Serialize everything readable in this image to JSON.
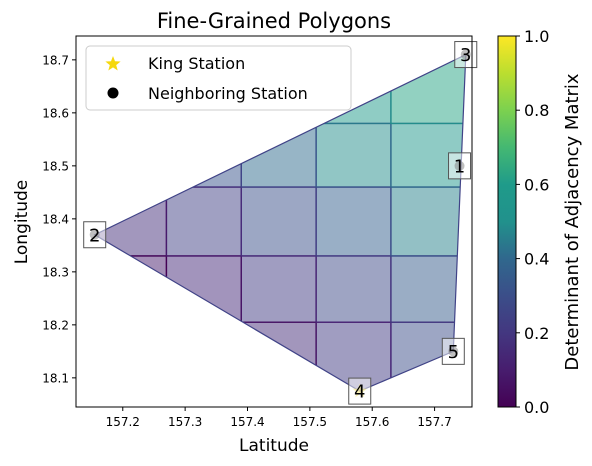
{
  "chart_data": {
    "type": "polygon-map",
    "title": "Fine-Grained Polygons",
    "xlabel": "Latitude",
    "ylabel": "Longitude",
    "xlim": [
      157.125,
      157.76
    ],
    "ylim": [
      18.045,
      18.745
    ],
    "xticks": [
      157.2,
      157.3,
      157.4,
      157.5,
      157.6,
      157.7
    ],
    "yticks": [
      18.1,
      18.2,
      18.3,
      18.4,
      18.5,
      18.6,
      18.7
    ],
    "xtick_labels": [
      "157.2",
      "157.3",
      "157.4",
      "157.5",
      "157.6",
      "157.7"
    ],
    "ytick_labels": [
      "18.1",
      "18.2",
      "18.3",
      "18.4",
      "18.5",
      "18.6",
      "18.7"
    ],
    "colorbar": {
      "label": "Determinant of Adjacency Matrix",
      "range": [
        0.0,
        1.0
      ],
      "ticks": [
        0.0,
        0.2,
        0.4,
        0.6,
        0.8,
        1.0
      ],
      "tick_labels": [
        "0.0",
        "0.2",
        "0.4",
        "0.6",
        "0.8",
        "1.0"
      ],
      "colormap": "viridis"
    },
    "legend": {
      "placement": "upper-left",
      "entries": [
        {
          "label": "King Station",
          "marker": "star",
          "color": "#f5d80e"
        },
        {
          "label": "Neighboring Station",
          "marker": "circle",
          "color": "#000000"
        }
      ]
    },
    "hull": [
      [
        157.155,
        18.37
      ],
      [
        157.75,
        18.71
      ],
      [
        157.73,
        18.15
      ],
      [
        157.58,
        18.075
      ]
    ],
    "stations": [
      {
        "label": "1",
        "x": 157.74,
        "y": 18.5,
        "role": "neighbor"
      },
      {
        "label": "2",
        "x": 157.155,
        "y": 18.37,
        "role": "neighbor"
      },
      {
        "label": "3",
        "x": 157.75,
        "y": 18.71,
        "role": "neighbor"
      },
      {
        "label": "4",
        "x": 157.58,
        "y": 18.075,
        "role": "king"
      },
      {
        "label": "5",
        "x": 157.73,
        "y": 18.15,
        "role": "neighbor"
      }
    ],
    "grid_x": [
      157.155,
      157.27,
      157.39,
      157.51,
      157.63,
      157.75
    ],
    "grid_y": [
      18.075,
      18.205,
      18.33,
      18.46,
      18.58,
      18.71
    ],
    "cell_values": [
      [
        0.05,
        0.1,
        0.16,
        0.22,
        0.3
      ],
      [
        0.1,
        0.15,
        0.22,
        0.28,
        0.36
      ],
      [
        0.17,
        0.24,
        0.31,
        0.38,
        0.46
      ],
      [
        0.26,
        0.33,
        0.41,
        0.49,
        0.56
      ],
      [
        0.36,
        0.44,
        0.52,
        0.59,
        0.64
      ]
    ]
  }
}
